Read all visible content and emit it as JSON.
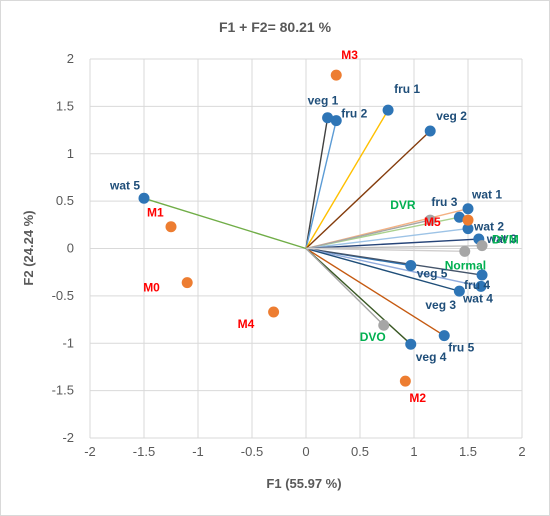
{
  "chart_data": {
    "type": "scatter",
    "title": "F1 + F2= 80.21 %",
    "xlabel": "F1 (55.97 %)",
    "ylabel": "F2 (24.24 %)",
    "xlim": [
      -2,
      2
    ],
    "ylim": [
      -2,
      2
    ],
    "xticks": [
      "-2",
      "-1.5",
      "-1",
      "-0.5",
      "0",
      "0.5",
      "1",
      "1.5",
      "2"
    ],
    "yticks": [
      "-2",
      "-1.5",
      "-1",
      "-0.5",
      "0",
      "0.5",
      "1",
      "1.5",
      "2"
    ],
    "grid": true,
    "colors": {
      "variables": "#2e75b6",
      "variable_labels": "#1f4e79",
      "observations": "#ed7d31",
      "observation_labels": "#ff0000",
      "supplementary": "#a6a6a6",
      "supplementary_labels": "#00b050",
      "grid": "#d9d9d9"
    },
    "series": [
      {
        "role": "variables",
        "draw_vectors": true,
        "points": [
          {
            "label": "veg 1",
            "x": 0.2,
            "y": 1.38,
            "vector_color": "#404040"
          },
          {
            "label": "fru 2",
            "x": 0.28,
            "y": 1.35,
            "vector_color": "#5b9bd5"
          },
          {
            "label": "fru 1",
            "x": 0.76,
            "y": 1.46,
            "vector_color": "#ffc000"
          },
          {
            "label": "veg 2",
            "x": 1.15,
            "y": 1.24,
            "vector_color": "#843c0c"
          },
          {
            "label": "wat 5",
            "x": -1.5,
            "y": 0.53,
            "vector_color": "#70ad47"
          },
          {
            "label": "fru 3",
            "x": 1.42,
            "y": 0.33,
            "vector_color": "#a9d18e"
          },
          {
            "label": "wat 1",
            "x": 1.5,
            "y": 0.42,
            "vector_color": "#f4b183"
          },
          {
            "label": "wat 2",
            "x": 1.5,
            "y": 0.21,
            "vector_color": "#9dc3e6"
          },
          {
            "label": "wat 3",
            "x": 1.6,
            "y": 0.1,
            "vector_color": "#264478"
          },
          {
            "label": "veg 5",
            "x": 0.97,
            "y": -0.18,
            "vector_color": "#2e75b6"
          },
          {
            "label": "fru 4",
            "x": 1.63,
            "y": -0.28,
            "vector_color": "#44546a"
          },
          {
            "label": "wat 4",
            "x": 1.62,
            "y": -0.4,
            "vector_color": "#8faadc"
          },
          {
            "label": "veg 3",
            "x": 1.42,
            "y": -0.45,
            "vector_color": "#1f4e79"
          },
          {
            "label": "fru 5",
            "x": 1.28,
            "y": -0.92,
            "vector_color": "#c55a11"
          },
          {
            "label": "veg 4",
            "x": 0.97,
            "y": -1.01,
            "vector_color": "#385723"
          }
        ]
      },
      {
        "role": "observations",
        "draw_vectors": false,
        "points": [
          {
            "label": "M3",
            "x": 0.28,
            "y": 1.83
          },
          {
            "label": "M1",
            "x": -1.25,
            "y": 0.23
          },
          {
            "label": "M0",
            "x": -1.1,
            "y": -0.36
          },
          {
            "label": "M4",
            "x": -0.3,
            "y": -0.67
          },
          {
            "label": "M5",
            "x": 1.5,
            "y": 0.3
          },
          {
            "label": "M2",
            "x": 0.92,
            "y": -1.4
          }
        ]
      },
      {
        "role": "supplementary",
        "draw_vectors": true,
        "points": [
          {
            "label": "DVR",
            "x": 1.15,
            "y": 0.3,
            "vector_color": "#a6a6a6"
          },
          {
            "label": "DVM",
            "x": 1.63,
            "y": 0.03,
            "vector_color": "#bfbfbf"
          },
          {
            "label": "Normal",
            "x": 1.47,
            "y": -0.03,
            "vector_color": "#d0cece"
          },
          {
            "label": "DVO",
            "x": 0.72,
            "y": -0.81,
            "vector_color": "#a6a6a6"
          }
        ]
      }
    ]
  }
}
